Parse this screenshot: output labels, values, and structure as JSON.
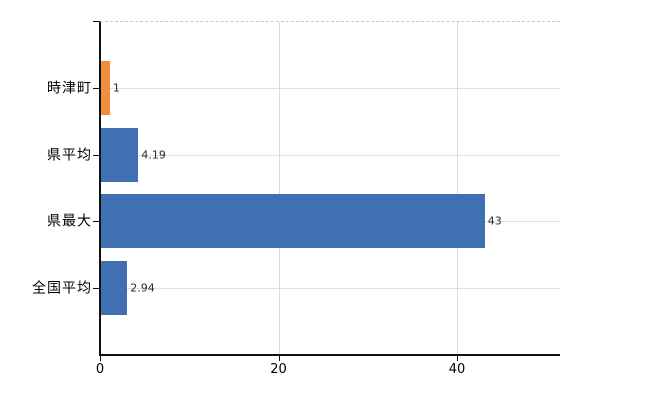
{
  "chart_data": {
    "type": "bar",
    "orientation": "horizontal",
    "title": "",
    "xlabel": "",
    "ylabel": "",
    "categories": [
      "時津町",
      "県平均",
      "県最大",
      "全国平均"
    ],
    "values": [
      1,
      4.19,
      43,
      2.94
    ],
    "value_labels": [
      "1",
      "4.19",
      "43",
      "2.94"
    ],
    "bar_colors": [
      "#ee8f3d",
      "#4070b2",
      "#4070b2",
      "#4070b2"
    ],
    "x_ticks": [
      "0",
      "20",
      "40"
    ],
    "x_tick_values": [
      0,
      20,
      40
    ],
    "xlim": [
      0,
      51.5
    ],
    "grid": true,
    "legend": false,
    "colors": {
      "highlight_bar": "#ee8f3d",
      "default_bar": "#4070b2",
      "axis": "#111111",
      "row_gridline": "#dce3d8",
      "vertical_gridline": "#d9d9d9",
      "top_border": "#c9c9c9",
      "value_label": "#2b2b2b",
      "background": "#ffffff"
    }
  }
}
